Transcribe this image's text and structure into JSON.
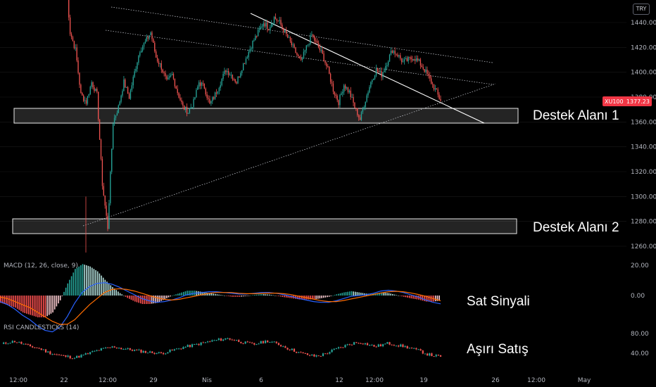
{
  "currency_badge": "TRY",
  "price_tag": {
    "symbol": "XU100",
    "value": "1377.23"
  },
  "annotations": {
    "support1": "Destek Alanı 1",
    "support2": "Destek Alanı 2",
    "sell_signal": "Sat Sinyali",
    "oversold": "Aşırı Satış"
  },
  "colors": {
    "up": "#26a69a",
    "down": "#ef5350",
    "macd": "#2962ff",
    "signal": "#ff6d00",
    "hist_up_strong": "#26a69a",
    "hist_up_weak": "#b2dfdb",
    "hist_down_strong": "#ff5252",
    "hist_down_weak": "#ffcdd2",
    "price_tag_bg": "#f23645"
  },
  "chart_data": [
    {
      "type": "candlestick",
      "y_ticks": [
        1260,
        1280,
        1300,
        1320,
        1340,
        1360,
        1380,
        1400,
        1420,
        1440
      ],
      "y_tick_labels": [
        "1260.00",
        "1280.00",
        "1300.00",
        "1320.00",
        "1340.00",
        "1360.00",
        "1380.00",
        "1400.00",
        "1420.00",
        "1440.00"
      ],
      "x_tick_labels": [
        "12:00",
        "22",
        "12:00",
        "29",
        "Nis",
        "6",
        "12",
        "12:00",
        "19",
        "26",
        "12:00",
        "May"
      ],
      "last_price": 1377.23,
      "support_zones": [
        {
          "label": "Destek Alanı 1",
          "from": 1361,
          "to": 1372
        },
        {
          "label": "Destek Alanı 2",
          "from": 1273,
          "to": 1284
        }
      ],
      "series": [
        {
          "values": [
            1488,
            1432,
            1418,
            1382,
            1376,
            1392,
            1382,
            1310,
            1275,
            1360,
            1372,
            1392,
            1380,
            1400,
            1418,
            1424,
            1432,
            1412,
            1404,
            1392,
            1398,
            1384,
            1372,
            1368,
            1376,
            1392,
            1388,
            1374,
            1382,
            1392,
            1402,
            1398,
            1392,
            1404,
            1414,
            1424,
            1432,
            1440,
            1436,
            1444,
            1440,
            1432,
            1424,
            1416,
            1408,
            1420,
            1430,
            1422,
            1414,
            1402,
            1386,
            1376,
            1390,
            1384,
            1372,
            1362,
            1378,
            1392,
            1402,
            1398,
            1408,
            1418,
            1414,
            1408,
            1410,
            1412,
            1408,
            1402,
            1394,
            1386,
            1377
          ]
        }
      ]
    },
    {
      "type": "line",
      "title": "MACD (12, 26, close, 9)",
      "y_ticks": [
        0,
        20
      ],
      "y_tick_labels": [
        "0.00",
        "20.00"
      ],
      "series": [
        {
          "name": "MACD",
          "values": [
            -4,
            -6,
            -9,
            -13,
            -16,
            -20,
            -23,
            -24,
            -21,
            -14,
            -5,
            2,
            6,
            8,
            8.5,
            7.5,
            5.5,
            3,
            0.5,
            -2,
            -3.5,
            -4.5,
            -4,
            -3,
            -1.5,
            0.5,
            1.5,
            2,
            2.5,
            2.5,
            2,
            1.5,
            1,
            1,
            1.5,
            2,
            2,
            1.5,
            0.5,
            -0.5,
            -2,
            -3,
            -4,
            -4.5,
            -4.5,
            -3.5,
            -2,
            -0.5,
            0,
            0.5,
            1.5,
            3,
            3.5,
            3,
            2,
            0.5,
            -1,
            -3,
            -4.5,
            -5.5
          ]
        },
        {
          "name": "Signal",
          "values": [
            -1,
            -2,
            -4,
            -6,
            -8,
            -11,
            -14,
            -17,
            -19,
            -19,
            -16,
            -11,
            -6,
            -2,
            2,
            4,
            4.5,
            4,
            3,
            1.5,
            0,
            -1.5,
            -2.5,
            -3,
            -2.5,
            -1.5,
            -0.5,
            0.5,
            1.5,
            2,
            2,
            2,
            1.5,
            1.2,
            1.2,
            1.4,
            1.6,
            1.6,
            1.2,
            0.6,
            -0.4,
            -1.4,
            -2.4,
            -3.4,
            -4,
            -4,
            -3.3,
            -2.3,
            -1.3,
            -0.3,
            0.7,
            1.7,
            2.5,
            2.8,
            2.5,
            1.7,
            0.7,
            -0.5,
            -2,
            -3.5
          ]
        }
      ]
    },
    {
      "type": "candlestick",
      "title": "RSI CANDLESTICKS (14)",
      "y_ticks": [
        40,
        80
      ],
      "y_tick_labels": [
        "40.00",
        "80.00"
      ],
      "series": [
        {
          "values": [
            58,
            62,
            64,
            60,
            55,
            52,
            48,
            42,
            38,
            35,
            33,
            31,
            35,
            39,
            44,
            48,
            51,
            53,
            50,
            48,
            46,
            44,
            42,
            41,
            40,
            43,
            47,
            51,
            54,
            57,
            60,
            63,
            66,
            68,
            70,
            67,
            63,
            60,
            58,
            62,
            65,
            61,
            56,
            50,
            45,
            40,
            37,
            34,
            36,
            41,
            47,
            52,
            57,
            61,
            62,
            58,
            54,
            56,
            60,
            58,
            55,
            52,
            48,
            44,
            38,
            35,
            33
          ]
        }
      ]
    }
  ]
}
